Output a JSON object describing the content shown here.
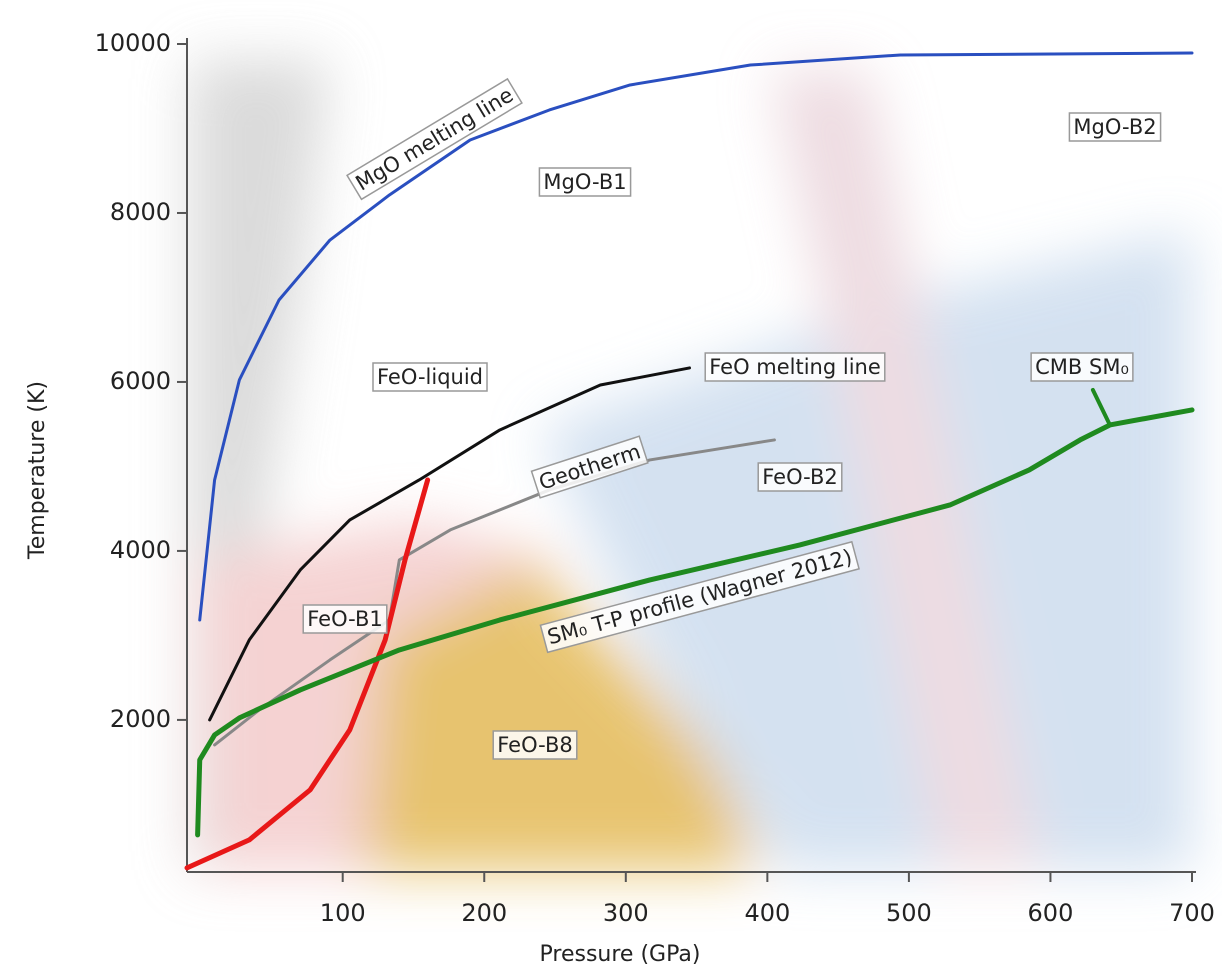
{
  "chart_data": {
    "type": "line",
    "xlabel": "Pressure (GPa)",
    "ylabel": "Temperature (K)",
    "xlim": [
      -10,
      700
    ],
    "ylim": [
      200,
      10000
    ],
    "xticks": [
      100,
      200,
      300,
      400,
      500,
      600,
      700
    ],
    "yticks": [
      2000,
      4000,
      6000,
      8000,
      10000
    ],
    "series": [
      {
        "name": "MgO melting line",
        "color": "#2a4fc0",
        "x": [
          -1,
          9.5,
          27,
          55,
          91,
          133,
          190,
          246,
          303,
          388,
          494,
          700
        ],
        "values": [
          3183,
          4840,
          6024,
          6970,
          7680,
          8213,
          8864,
          9219,
          9515,
          9751,
          9870,
          9893
        ]
      },
      {
        "name": "FeO melting line",
        "color": "#111111",
        "x": [
          6,
          34,
          70,
          105,
          154,
          211,
          282,
          345
        ],
        "values": [
          2000,
          2947,
          3775,
          4367,
          4840,
          5432,
          5964,
          6166
        ]
      },
      {
        "name": "Geotherm",
        "color": "#888888",
        "x": [
          9.5,
          41,
          91,
          133,
          140,
          176,
          246,
          317,
          405
        ],
        "values": [
          1704,
          2118,
          2710,
          3183,
          3893,
          4249,
          4722,
          5077,
          5314
        ]
      },
      {
        "color": "#e81818",
        "x": [
          -10,
          34,
          77,
          105,
          130,
          144,
          160
        ],
        "values": [
          249,
          580,
          1172,
          1882,
          2947,
          3893,
          4840
        ]
      },
      {
        "name": "SM₀ T-P profile (Wagner 2012)",
        "color": "#1f8a1f",
        "x": [
          -2.5,
          -1,
          9.5,
          27,
          70,
          140,
          211,
          317,
          423,
          529,
          585,
          621,
          642,
          700
        ],
        "values": [
          639,
          1527,
          1822,
          2024,
          2355,
          2828,
          3183,
          3657,
          4071,
          4544,
          4959,
          5314,
          5491,
          5669
        ]
      },
      {
        "color": "#1f8a1f",
        "x": [
          630,
          642
        ],
        "values": [
          5905,
          5491
        ]
      }
    ],
    "annotations": [
      "MgO-B1",
      "MgO-B2",
      "FeO-liquid",
      "FeO-B2",
      "FeO-B1",
      "FeO-B8",
      "CMB SM₀"
    ]
  }
}
